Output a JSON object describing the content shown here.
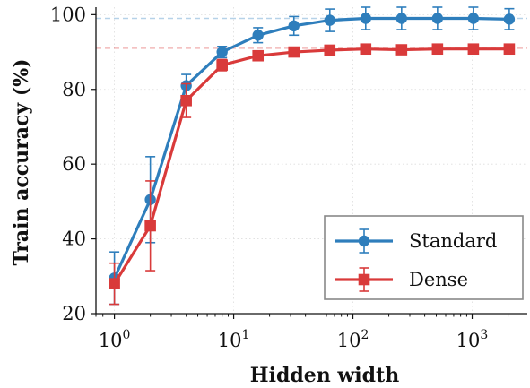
{
  "chart_data": {
    "type": "line",
    "xlabel": "Hidden width",
    "ylabel": "Train accuracy (%)",
    "x_scale": "log10",
    "xlim": [
      0.7,
      2900
    ],
    "ylim": [
      20,
      102
    ],
    "x_ticks": [
      1,
      10,
      100,
      1000
    ],
    "x_tick_labels": [
      {
        "base": "10",
        "exp": "0"
      },
      {
        "base": "10",
        "exp": "1"
      },
      {
        "base": "10",
        "exp": "2"
      },
      {
        "base": "10",
        "exp": "3"
      }
    ],
    "y_ticks": [
      20,
      40,
      60,
      80,
      100
    ],
    "y_tick_labels": [
      "20",
      "40",
      "60",
      "80",
      "100"
    ],
    "grid": true,
    "legend_position": "lower-right",
    "x": [
      1,
      2,
      4,
      8,
      16,
      32,
      64,
      128,
      256,
      512,
      1024,
      2048
    ],
    "series": [
      {
        "name": "Standard",
        "color": "#2e7ebc",
        "marker": "circle",
        "values": [
          29.5,
          50.5,
          81,
          90,
          94.5,
          97,
          98.5,
          99,
          99,
          99,
          99,
          98.8
        ],
        "errors": [
          7,
          11.5,
          3,
          1.5,
          2,
          2.5,
          3,
          3,
          3,
          3,
          3,
          2.8
        ],
        "reference": 99
      },
      {
        "name": "Dense",
        "color": "#d93a3a",
        "marker": "square",
        "values": [
          28,
          43.5,
          77,
          86.5,
          89,
          90,
          90.5,
          90.8,
          90.6,
          90.8,
          90.8,
          90.8
        ],
        "errors": [
          5.5,
          12,
          4.5,
          1.5,
          1,
          1,
          1,
          1,
          0.8,
          1,
          0.8,
          0.8
        ],
        "reference": 91
      }
    ]
  }
}
